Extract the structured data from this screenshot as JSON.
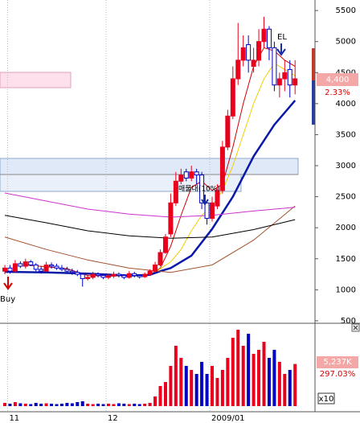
{
  "chart_data": {
    "type": "candlestick",
    "categories": [
      null,
      "11",
      null,
      null,
      null,
      null,
      null,
      null,
      null,
      null,
      null,
      null,
      null,
      null,
      null,
      null,
      null,
      null,
      null,
      null,
      "12",
      null,
      null,
      null,
      null,
      null,
      null,
      null,
      null,
      null,
      null,
      null,
      null,
      null,
      null,
      null,
      null,
      null,
      null,
      null,
      "2009/01",
      null,
      null,
      null,
      null,
      null,
      null,
      null,
      null,
      null,
      null,
      null,
      null,
      null,
      null,
      null,
      null
    ],
    "open": [
      1300,
      1350,
      1300,
      1420,
      1380,
      1450,
      1400,
      1330,
      1300,
      1400,
      1380,
      1350,
      1330,
      1300,
      1280,
      1250,
      1180,
      1200,
      1250,
      1230,
      1200,
      1220,
      1250,
      1230,
      1200,
      1260,
      1230,
      1210,
      1250,
      1300,
      1400,
      1600,
      1900,
      2400,
      2750,
      2900,
      2800,
      2900,
      2850,
      2400,
      2150,
      2350,
      2600,
      3300,
      3800,
      4400,
      4700,
      4950,
      4600,
      4700,
      5000,
      5200,
      4900,
      4300,
      4400,
      4550,
      4300
    ],
    "high": [
      1400,
      1400,
      1480,
      1460,
      1500,
      1480,
      1430,
      1380,
      1450,
      1440,
      1420,
      1400,
      1370,
      1340,
      1320,
      1270,
      1240,
      1290,
      1280,
      1260,
      1260,
      1290,
      1280,
      1250,
      1300,
      1290,
      1250,
      1280,
      1330,
      1450,
      1650,
      1900,
      2550,
      2900,
      2950,
      2950,
      3000,
      2950,
      2900,
      2450,
      2500,
      2700,
      3400,
      3900,
      4600,
      5300,
      5100,
      5100,
      4900,
      5200,
      5400,
      5250,
      5000,
      4500,
      4700,
      4700,
      4700
    ],
    "low": [
      1250,
      1260,
      1280,
      1350,
      1340,
      1380,
      1300,
      1260,
      1280,
      1340,
      1320,
      1300,
      1270,
      1240,
      1220,
      1050,
      1150,
      1170,
      1200,
      1170,
      1170,
      1190,
      1200,
      1170,
      1180,
      1200,
      1180,
      1190,
      1230,
      1280,
      1380,
      1580,
      1850,
      2350,
      2700,
      2750,
      2750,
      2700,
      2300,
      2050,
      2100,
      2300,
      2550,
      3250,
      3750,
      4300,
      4600,
      4500,
      4500,
      4600,
      4900,
      4700,
      4200,
      4100,
      4200,
      4100,
      4150
    ],
    "close": [
      1350,
      1300,
      1420,
      1380,
      1450,
      1400,
      1330,
      1300,
      1400,
      1380,
      1350,
      1330,
      1300,
      1280,
      1250,
      1180,
      1200,
      1250,
      1230,
      1200,
      1220,
      1250,
      1230,
      1200,
      1260,
      1230,
      1210,
      1250,
      1300,
      1400,
      1600,
      1850,
      2400,
      2750,
      2850,
      2800,
      2900,
      2850,
      2400,
      2150,
      2400,
      2600,
      3300,
      3800,
      4400,
      4700,
      4900,
      4700,
      4700,
      5000,
      5200,
      4900,
      4300,
      4400,
      4500,
      4300,
      4400
    ],
    "up_color": "#e8001c",
    "down_color": "#0000c0",
    "ylim": [
      460,
      5670
    ],
    "yticks": [
      500,
      1000,
      1500,
      2000,
      2500,
      3000,
      3500,
      4000,
      4500,
      5000,
      5500
    ],
    "month_lines": true,
    "series": [
      {
        "color": "#d40000",
        "width": 1,
        "x": [
          4,
          8,
          12,
          16,
          20,
          24,
          28,
          30,
          32,
          34,
          36,
          38,
          40,
          42,
          44,
          46,
          48,
          50,
          52,
          54,
          56
        ],
        "values": [
          1400,
          1370,
          1340,
          1230,
          1220,
          1230,
          1240,
          1350,
          1700,
          2200,
          2650,
          2750,
          2600,
          2700,
          3300,
          4000,
          4600,
          4900,
          4850,
          4700,
          4600
        ]
      },
      {
        "color": "#f0d000",
        "width": 1,
        "x": [
          20,
          24,
          28,
          32,
          34,
          36,
          38,
          40,
          42,
          44,
          46,
          48,
          50,
          52,
          54,
          56
        ],
        "values": [
          1250,
          1230,
          1230,
          1450,
          1650,
          1950,
          2200,
          2350,
          2600,
          3000,
          3500,
          4000,
          4400,
          4650,
          4550,
          4450
        ]
      },
      {
        "color": "#0a1aa8",
        "width": 2.5,
        "x": [
          0,
          8,
          16,
          24,
          28,
          30,
          32,
          36,
          40,
          44,
          48,
          52,
          56
        ],
        "values": [
          1290,
          1280,
          1260,
          1230,
          1240,
          1300,
          1350,
          1550,
          1980,
          2500,
          3150,
          3660,
          4050
        ]
      },
      {
        "color": "#a0522d",
        "width": 1,
        "x": [
          0,
          8,
          16,
          24,
          32,
          40,
          48,
          56
        ],
        "values": [
          1850,
          1650,
          1480,
          1350,
          1280,
          1400,
          1800,
          2350
        ]
      },
      {
        "color": "#000000",
        "width": 1,
        "x": [
          0,
          8,
          16,
          24,
          32,
          40,
          48,
          56
        ],
        "values": [
          2200,
          2080,
          1950,
          1870,
          1830,
          1850,
          1970,
          2130
        ]
      },
      {
        "color": "#cc33cc",
        "width": 1,
        "x": [
          0,
          8,
          16,
          24,
          32,
          40,
          48,
          56
        ],
        "values": [
          2560,
          2430,
          2300,
          2220,
          2170,
          2200,
          2270,
          2330
        ]
      }
    ],
    "volume": {
      "values": [
        400,
        300,
        500,
        350,
        300,
        250,
        400,
        300,
        350,
        300,
        250,
        300,
        400,
        350,
        500,
        600,
        300,
        250,
        300,
        250,
        300,
        250,
        350,
        300,
        250,
        300,
        250,
        300,
        400,
        1200,
        2500,
        3000,
        5000,
        7500,
        6000,
        5000,
        4500,
        4000,
        5500,
        4000,
        5000,
        3500,
        4500,
        6000,
        8500,
        9500,
        7500,
        9000,
        6500,
        7000,
        8000,
        6000,
        7000,
        5500,
        4000,
        4500,
        5237
      ],
      "ylim": [
        0,
        10000
      ]
    },
    "annotations": {
      "buy": "Buy",
      "exit": "EL",
      "zone": "매물대(10%)"
    },
    "last_price": "4,400",
    "last_change": "2.33%",
    "volume_label": "5,237K",
    "volume_change": "297.03%",
    "volume_scale": "x10"
  }
}
